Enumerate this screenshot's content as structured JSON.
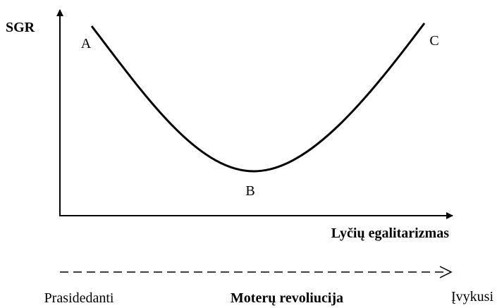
{
  "axes": {
    "y_label": "SGR",
    "x_label": "Lyčių egalitarizmas"
  },
  "points": [
    "A",
    "B",
    "C"
  ],
  "scale": {
    "start": "Prasidedanti",
    "title": "Moterų revoliucija",
    "end": "Įvykusi"
  }
}
